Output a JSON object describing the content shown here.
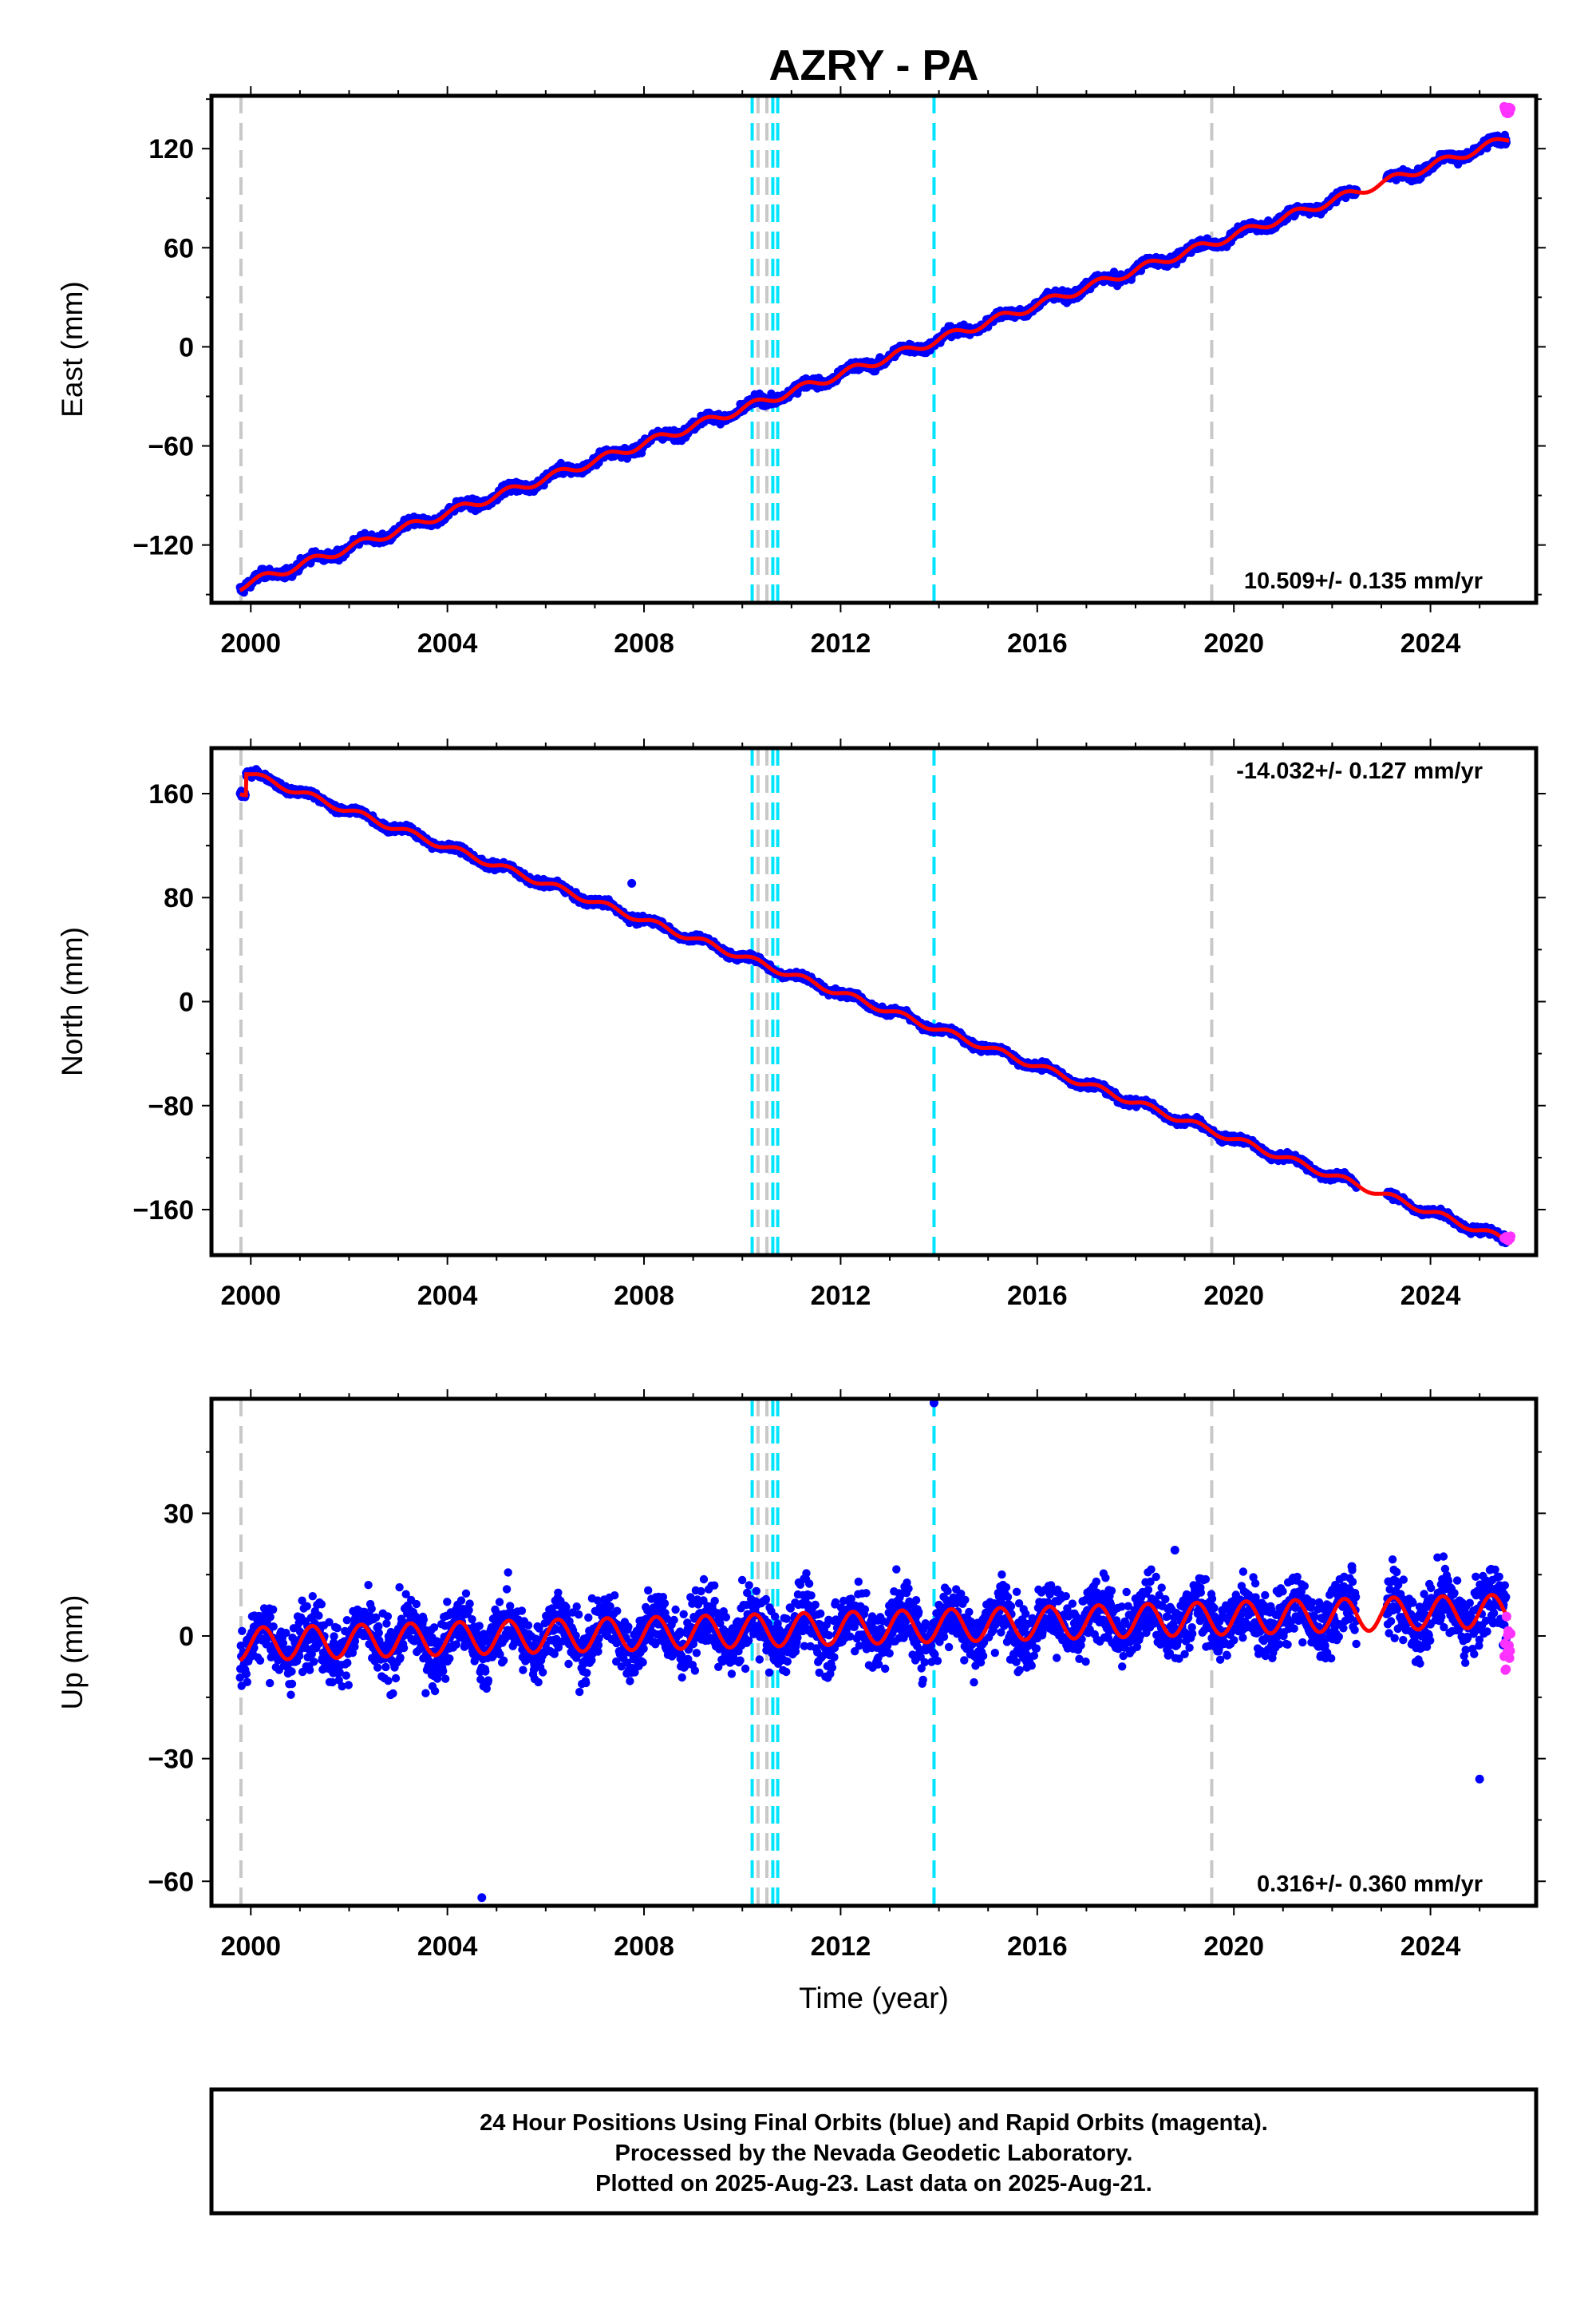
{
  "title": "AZRY - PA",
  "colors": {
    "final_orbits": "#0000ff",
    "rapid_orbits": "#ff33ff",
    "model": "#ff0000",
    "equipment_change": "#c8c8c8",
    "earthquake": "#00e5ff"
  },
  "xaxis": {
    "label": "Time (year)",
    "range": [
      1999.2,
      2026.15
    ],
    "ticks": [
      2000,
      2004,
      2008,
      2012,
      2016,
      2020,
      2024
    ],
    "tick_labels": [
      "2000",
      "2004",
      "2008",
      "2012",
      "2016",
      "2020",
      "2024"
    ]
  },
  "event_lines": {
    "gray": [
      1999.8,
      2010.32,
      2010.5,
      2019.55
    ],
    "cyan": [
      2010.2,
      2010.62,
      2010.72,
      2013.9
    ]
  },
  "chart_data": [
    {
      "type": "scatter",
      "name": "east",
      "ylabel": "East (mm)",
      "ylim": [
        -155,
        152
      ],
      "yticks": [
        -120,
        -60,
        0,
        60,
        120
      ],
      "ytick_labels": [
        "−120",
        "−60",
        "0",
        "60",
        "120"
      ],
      "rate": "10.509+/- 0.135 mm/yr",
      "rate_position": "bottom-right",
      "start": {
        "x": 1999.78,
        "y": -145
      },
      "slope": 10.509,
      "annual_amplitude": 2.5,
      "noise": 2.0,
      "end_rapid": 143,
      "gap": [
        2022.5,
        2023.1
      ],
      "outliers": []
    },
    {
      "type": "scatter",
      "name": "north",
      "ylabel": "North (mm)",
      "ylim": [
        -195,
        195
      ],
      "yticks": [
        -160,
        -80,
        0,
        80,
        160
      ],
      "ytick_labels": [
        "−160",
        "−80",
        "0",
        "80",
        "160"
      ],
      "rate": "-14.032+/- 0.127 mm/yr",
      "rate_position": "top-right",
      "start": {
        "x": 1999.78,
        "y": 162
      },
      "jump": {
        "x": 1999.9,
        "y": 178
      },
      "slope": -14.032,
      "annual_amplitude": 2.5,
      "noise": 2.0,
      "end_rapid": -182,
      "gap": [
        2022.5,
        2023.1
      ],
      "outliers": [
        {
          "x": 2007.75,
          "y": 91
        }
      ]
    },
    {
      "type": "scatter",
      "name": "up",
      "ylabel": "Up (mm)",
      "ylim": [
        -66,
        58
      ],
      "yticks": [
        -60,
        -30,
        0,
        30
      ],
      "ytick_labels": [
        "−60",
        "−30",
        "0",
        "30"
      ],
      "rate": "0.316+/- 0.360 mm/yr",
      "rate_position": "bottom-right",
      "start": {
        "x": 1999.78,
        "y": -2
      },
      "slope": 0.316,
      "annual_amplitude": 4,
      "noise": 5.5,
      "end_rapid": -3,
      "gap": [
        2022.5,
        2023.1
      ],
      "outliers": [
        {
          "x": 2013.9,
          "y": 57
        },
        {
          "x": 2004.7,
          "y": -64
        },
        {
          "x": 2025.0,
          "y": -35
        },
        {
          "x": 2018.8,
          "y": 21
        },
        {
          "x": 2022.4,
          "y": 17
        }
      ]
    }
  ],
  "caption": {
    "line1": "24 Hour Positions Using Final Orbits (blue) and Rapid Orbits (magenta).",
    "line2": "Processed by the Nevada Geodetic Laboratory.",
    "line3": "Plotted on 2025-Aug-23. Last data on 2025-Aug-21."
  }
}
